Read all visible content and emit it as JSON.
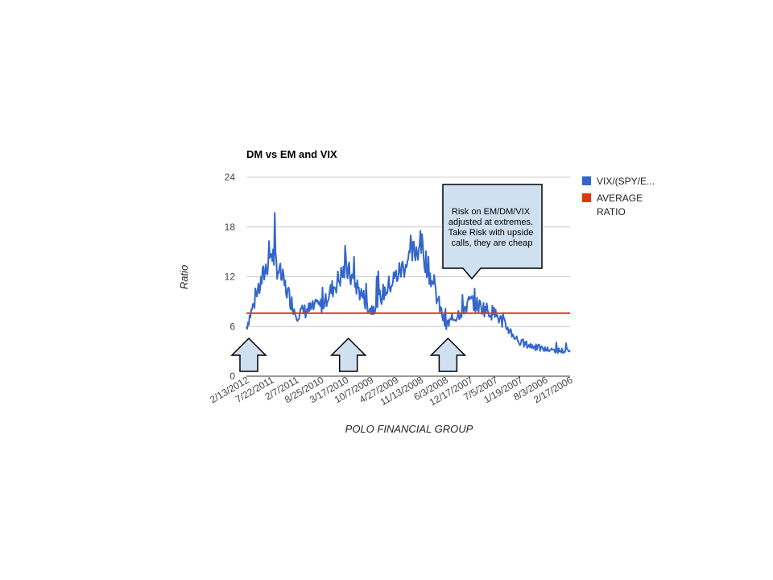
{
  "chart_data": {
    "type": "line",
    "title": "DM vs EM and VIX",
    "xlabel": "POLO FINANCIAL GROUP",
    "ylabel": "Ratio",
    "ylim": [
      0,
      24
    ],
    "yticks": [
      "0",
      "6",
      "12",
      "18",
      "24"
    ],
    "x_tick_labels": [
      "2/13/2012",
      "7/22/2011",
      "2/7/2011",
      "8/25/2010",
      "3/17/2010",
      "10/7/2009",
      "4/27/2009",
      "11/13/2008",
      "6/3/2008",
      "12/17/2007",
      "7/5/2007",
      "1/19/2007",
      "8/3/2006",
      "2/17/2006"
    ],
    "grid": true,
    "legend_position": "right",
    "series": [
      {
        "name": "VIX/(SPY/E...",
        "color": "#3366cc",
        "x": [
          "2/13/2012",
          "7/22/2011",
          "2/7/2011",
          "8/25/2010",
          "3/17/2010",
          "10/7/2009",
          "4/27/2009",
          "11/13/2008",
          "6/3/2008",
          "12/17/2007",
          "7/5/2007",
          "1/19/2007",
          "8/3/2006",
          "2/17/2006"
        ],
        "values": [
          6.0,
          15.0,
          7.5,
          8.5,
          13.0,
          8.0,
          12.0,
          16.0,
          6.0,
          9.0,
          7.5,
          4.0,
          3.2,
          3.0
        ]
      },
      {
        "name": "AVERAGE RATIO",
        "color": "#dc3912",
        "x": [
          "2/13/2012",
          "2/17/2006"
        ],
        "values": [
          7.6,
          7.6
        ]
      }
    ],
    "annotations": [
      {
        "text_lines": [
          "Risk on EM/DM/VIX",
          "adjusted at extremes.",
          "Take Risk with upside",
          "calls, they are cheap"
        ],
        "at_x": "12/17/2007"
      }
    ],
    "arrow_markers": [
      "2/13/2012",
      "3/17/2010",
      "6/3/2008"
    ],
    "arrow_color": "#cfe0f1"
  }
}
